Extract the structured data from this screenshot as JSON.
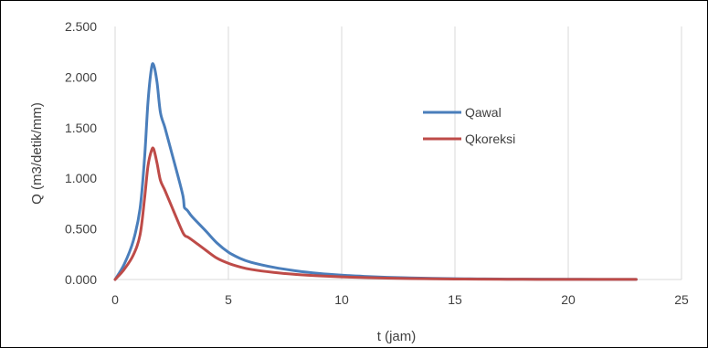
{
  "chart_data": {
    "type": "line",
    "title": "",
    "xlabel": "t (jam)",
    "ylabel": "Q (m3/detik/mm)",
    "xlim": [
      0,
      25
    ],
    "ylim": [
      0,
      2.5
    ],
    "x_ticks": [
      0,
      5,
      10,
      15,
      20,
      25
    ],
    "x_tick_labels": [
      "0",
      "5",
      "10",
      "15",
      "20",
      "25"
    ],
    "y_ticks": [
      0,
      0.5,
      1.0,
      1.5,
      2.0,
      2.5
    ],
    "y_tick_labels": [
      "0.000",
      "0.500",
      "1.000",
      "1.500",
      "2.000",
      "2.500"
    ],
    "grid": "vertical",
    "legend_position": "center-right",
    "series": [
      {
        "name": "Qawal",
        "color": "#4a7ebb",
        "points": [
          [
            0,
            0
          ],
          [
            0.4,
            0.15
          ],
          [
            0.8,
            0.38
          ],
          [
            1.1,
            0.7
          ],
          [
            1.3,
            1.2
          ],
          [
            1.45,
            1.75
          ],
          [
            1.6,
            2.08
          ],
          [
            1.7,
            2.12
          ],
          [
            1.85,
            1.95
          ],
          [
            2.0,
            1.65
          ],
          [
            2.2,
            1.5
          ],
          [
            2.5,
            1.25
          ],
          [
            2.8,
            1.0
          ],
          [
            3.0,
            0.82
          ],
          [
            3.05,
            0.72
          ],
          [
            3.1,
            0.7
          ],
          [
            3.2,
            0.68
          ],
          [
            3.4,
            0.62
          ],
          [
            4.0,
            0.48
          ],
          [
            4.5,
            0.36
          ],
          [
            5.0,
            0.27
          ],
          [
            5.5,
            0.21
          ],
          [
            6,
            0.17
          ],
          [
            7,
            0.12
          ],
          [
            8,
            0.085
          ],
          [
            9,
            0.06
          ],
          [
            10,
            0.043
          ],
          [
            11,
            0.031
          ],
          [
            12,
            0.022
          ],
          [
            13,
            0.016
          ],
          [
            14,
            0.011
          ],
          [
            15,
            0.008
          ],
          [
            16,
            0.006
          ],
          [
            17,
            0.004
          ],
          [
            18,
            0.003
          ],
          [
            20,
            0.002
          ],
          [
            23,
            0.001
          ]
        ]
      },
      {
        "name": "Qkoreksi",
        "color": "#be4b48",
        "points": [
          [
            0,
            0
          ],
          [
            0.4,
            0.1
          ],
          [
            0.8,
            0.24
          ],
          [
            1.1,
            0.44
          ],
          [
            1.3,
            0.8
          ],
          [
            1.45,
            1.12
          ],
          [
            1.6,
            1.27
          ],
          [
            1.7,
            1.29
          ],
          [
            1.85,
            1.15
          ],
          [
            2.0,
            0.98
          ],
          [
            2.2,
            0.88
          ],
          [
            2.5,
            0.72
          ],
          [
            2.8,
            0.56
          ],
          [
            3.0,
            0.46
          ],
          [
            3.1,
            0.43
          ],
          [
            3.2,
            0.42
          ],
          [
            3.4,
            0.39
          ],
          [
            4.0,
            0.29
          ],
          [
            4.5,
            0.21
          ],
          [
            5.0,
            0.16
          ],
          [
            5.5,
            0.125
          ],
          [
            6,
            0.1
          ],
          [
            7,
            0.07
          ],
          [
            8,
            0.05
          ],
          [
            9,
            0.036
          ],
          [
            10,
            0.026
          ],
          [
            11,
            0.019
          ],
          [
            12,
            0.013
          ],
          [
            13,
            0.009
          ],
          [
            14,
            0.007
          ],
          [
            15,
            0.005
          ],
          [
            16,
            0.003
          ],
          [
            18,
            0.002
          ],
          [
            20,
            0.001
          ],
          [
            23,
            0.001
          ]
        ]
      }
    ]
  }
}
